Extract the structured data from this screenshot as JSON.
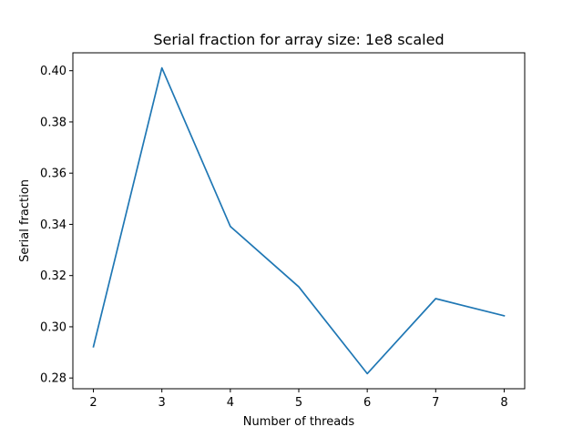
{
  "chart_data": {
    "type": "line",
    "title": "Serial fraction for array size: 1e8 scaled",
    "xlabel": "Number of threads",
    "ylabel": "Serial fraction",
    "x": [
      2,
      3,
      4,
      5,
      6,
      7,
      8
    ],
    "series": [
      {
        "values": [
          0.2922,
          0.4011,
          0.3392,
          0.3156,
          0.2817,
          0.311,
          0.3043
        ]
      }
    ],
    "xticks": [
      2,
      3,
      4,
      5,
      6,
      7,
      8
    ],
    "yticks": [
      0.28,
      0.3,
      0.32,
      0.34,
      0.36,
      0.38,
      0.4
    ],
    "xlim": [
      1.7,
      8.3
    ],
    "ylim": [
      0.2758,
      0.407
    ],
    "grid": false,
    "legend": "none",
    "line_color": "#1f77b4"
  }
}
